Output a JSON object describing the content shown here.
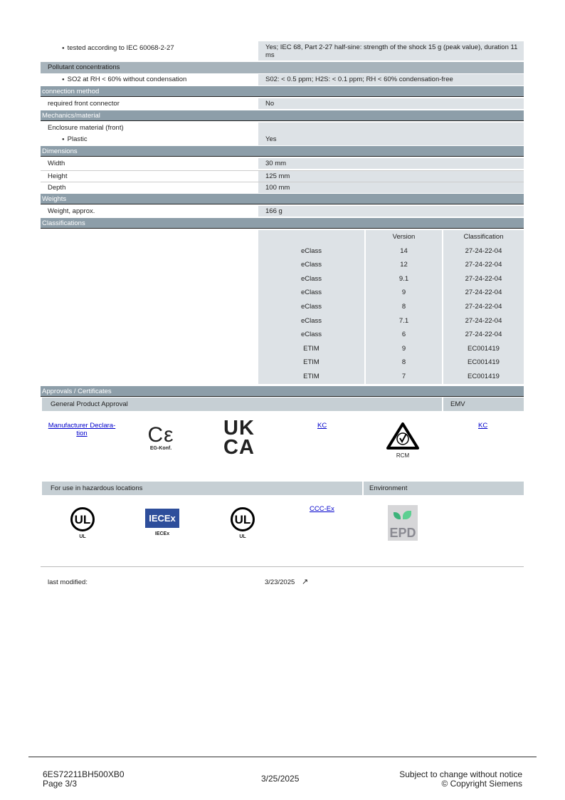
{
  "top": {
    "label": "tested according to IEC 60068-2-27",
    "value": "Yes; IEC 68, Part 2-27 half-sine: strength of the shock 15 g (peak value), duration 11 ms"
  },
  "pollutant": {
    "title": "Pollutant concentrations",
    "label": "SO2 at RH < 60% without condensation",
    "value": "S02: < 0.5 ppm; H2S: < 0.1 ppm; RH < 60% condensation-free"
  },
  "connection": {
    "title": "connection method",
    "label": "required front connector",
    "value": "No"
  },
  "mechanics": {
    "title": "Mechanics/material",
    "label": "Enclosure material (front)",
    "sub_label": "Plastic",
    "sub_value": "Yes"
  },
  "dimensions": {
    "title": "Dimensions",
    "rows": [
      {
        "label": "Width",
        "value": "30 mm"
      },
      {
        "label": "Height",
        "value": "125 mm"
      },
      {
        "label": "Depth",
        "value": "100 mm"
      }
    ]
  },
  "weights": {
    "title": "Weights",
    "label": "Weight, approx.",
    "value": "166 g"
  },
  "classifications": {
    "title": "Classifications",
    "headers": [
      "",
      "Version",
      "Classification"
    ],
    "rows": [
      [
        "eClass",
        "14",
        "27-24-22-04"
      ],
      [
        "eClass",
        "12",
        "27-24-22-04"
      ],
      [
        "eClass",
        "9.1",
        "27-24-22-04"
      ],
      [
        "eClass",
        "9",
        "27-24-22-04"
      ],
      [
        "eClass",
        "8",
        "27-24-22-04"
      ],
      [
        "eClass",
        "7.1",
        "27-24-22-04"
      ],
      [
        "eClass",
        "6",
        "27-24-22-04"
      ],
      [
        "ETIM",
        "9",
        "EC001419"
      ],
      [
        "ETIM",
        "8",
        "EC001419"
      ],
      [
        "ETIM",
        "7",
        "EC001419"
      ]
    ]
  },
  "approvals": {
    "title": "Approvals / Certificates",
    "general": "General Product Approval",
    "emv": "EMV",
    "manufacturer_link": "Manufacturer Declara-tion",
    "ce_caption": "EG-Konf.",
    "ukca": [
      "UK",
      "CA"
    ],
    "kc1": "KC",
    "rcm_caption": "RCM",
    "kc2": "KC",
    "hazard": "For use in hazardous locations",
    "environment": "Environment",
    "ul1": "UL",
    "iecex_logo": "IECEx",
    "iecex_caption": "IECEx",
    "ul2": "UL",
    "cccex": "CCC-Ex",
    "epd": "EPD"
  },
  "modified": {
    "label": "last modified:",
    "value": "3/23/2025"
  },
  "footer": {
    "product": "6ES72211BH500XB0",
    "page": "Page 3/3",
    "date": "3/25/2025",
    "notice": "Subject to change without notice",
    "copyright": "© Copyright Siemens"
  }
}
